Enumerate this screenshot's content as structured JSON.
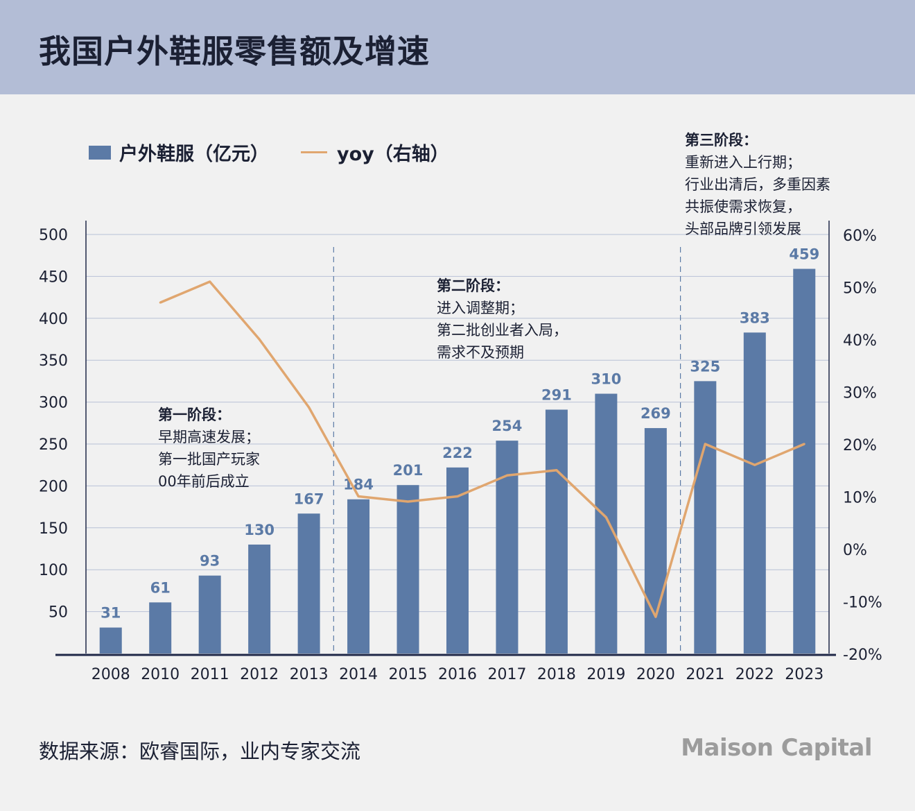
{
  "title": "我国户外鞋服零售额及增速",
  "legend": {
    "bar_label": "户外鞋服（亿元）",
    "line_label": "yoy（右轴）"
  },
  "annotations": {
    "stage1": {
      "head": "第一阶段：",
      "lines": [
        "早期高速发展；",
        "第一批国产玩家",
        "00年前后成立"
      ]
    },
    "stage2": {
      "head": "第二阶段：",
      "lines": [
        "进入调整期；",
        "第二批创业者入局，",
        "需求不及预期"
      ]
    },
    "stage3": {
      "head": "第三阶段：",
      "lines": [
        "重新进入上行期；",
        "行业出清后，多重因素",
        "共振使需求恢复，",
        "头部品牌引领发展"
      ]
    }
  },
  "source": "数据来源：欧睿国际，业内专家交流",
  "logo": "Maison Capital",
  "colors": {
    "bar": "#5b7aa6",
    "line": "#e0a66f",
    "grid": "#b8c1d6",
    "axis": "#1e2747",
    "text": "#1b2033",
    "label": "#5b7aa6"
  },
  "chart_data": {
    "type": "bar",
    "categories": [
      "2008",
      "2010",
      "2011",
      "2012",
      "2013",
      "2014",
      "2015",
      "2016",
      "2017",
      "2018",
      "2019",
      "2020",
      "2021",
      "2022",
      "2023"
    ],
    "series": [
      {
        "name": "户外鞋服（亿元）",
        "type": "bar",
        "axis": "left",
        "values": [
          31,
          61,
          93,
          130,
          167,
          184,
          201,
          222,
          254,
          291,
          310,
          269,
          325,
          383,
          459
        ]
      },
      {
        "name": "yoy（右轴）",
        "type": "line",
        "axis": "right",
        "values": [
          null,
          47,
          51,
          40,
          27,
          10,
          9,
          10,
          14,
          15,
          6,
          -13,
          20,
          16,
          20
        ]
      }
    ],
    "y_left": {
      "min": 0,
      "max": 500,
      "ticks": [
        50,
        100,
        150,
        200,
        250,
        300,
        350,
        400,
        450,
        500
      ]
    },
    "y_right": {
      "min": -20,
      "max": 60,
      "ticks": [
        -20,
        -10,
        0,
        10,
        20,
        30,
        40,
        50,
        60
      ],
      "tick_labels": [
        "-20%",
        "-10%",
        "0%",
        "10%",
        "20%",
        "30%",
        "40%",
        "50%",
        "60%"
      ]
    },
    "stage_dividers_after": [
      "2013",
      "2020"
    ],
    "grid": true,
    "legend_position": "top-left"
  }
}
